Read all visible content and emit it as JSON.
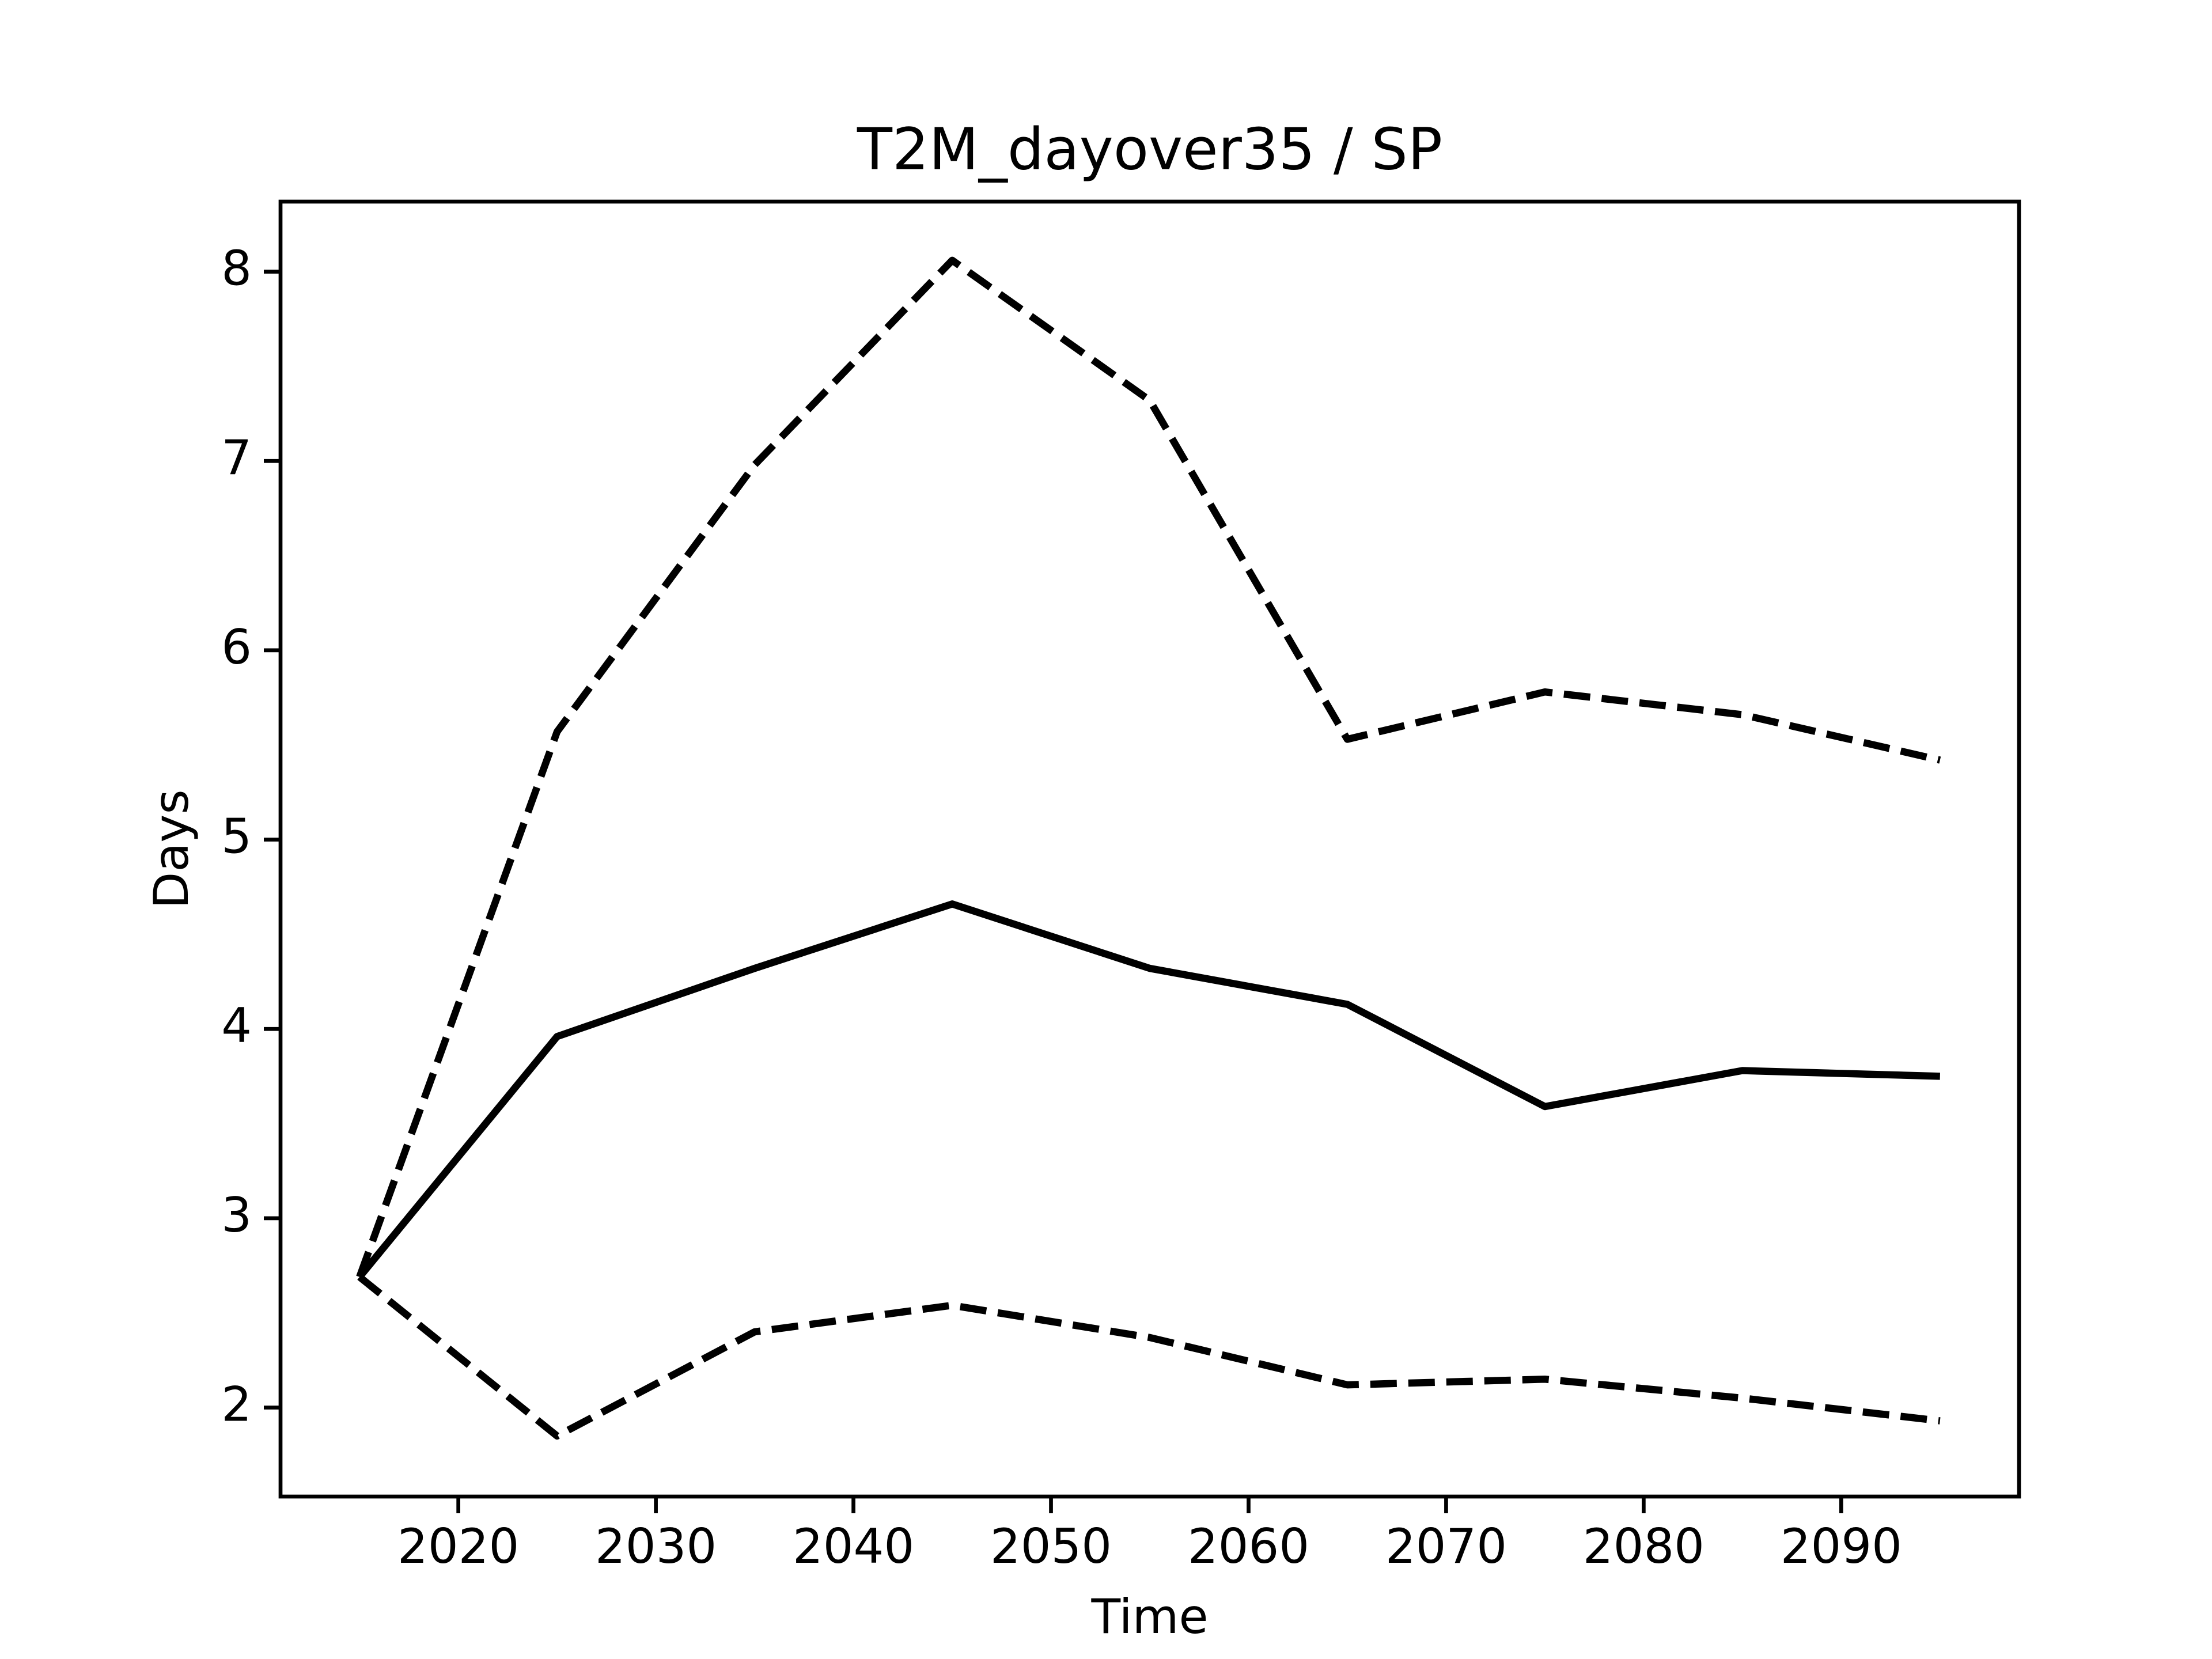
{
  "chart_data": {
    "type": "line",
    "title": "T2M_dayover35 / SP",
    "xlabel": "Time",
    "ylabel": "Days",
    "x": [
      2015,
      2025,
      2035,
      2045,
      2055,
      2065,
      2075,
      2085,
      2095
    ],
    "series": [
      {
        "color": "#000000",
        "style": "solid",
        "values": [
          2.69,
          3.96,
          4.32,
          4.66,
          4.32,
          4.13,
          3.59,
          3.78,
          3.75
        ]
      },
      {
        "color": "#000000",
        "style": "dashed",
        "values": [
          2.69,
          5.57,
          6.98,
          8.06,
          7.32,
          5.53,
          5.78,
          5.66,
          5.42
        ]
      },
      {
        "color": "#000000",
        "style": "dashed",
        "values": [
          2.69,
          1.85,
          2.4,
          2.54,
          2.37,
          2.12,
          2.15,
          2.05,
          1.93
        ]
      }
    ],
    "xlim": [
      2011,
      2099
    ],
    "xticks": [
      2020,
      2030,
      2040,
      2050,
      2060,
      2070,
      2080,
      2090
    ],
    "ylim": [
      1.53,
      8.37
    ],
    "yticks": [
      2,
      3,
      4,
      5,
      6,
      7,
      8
    ],
    "grid": false
  }
}
